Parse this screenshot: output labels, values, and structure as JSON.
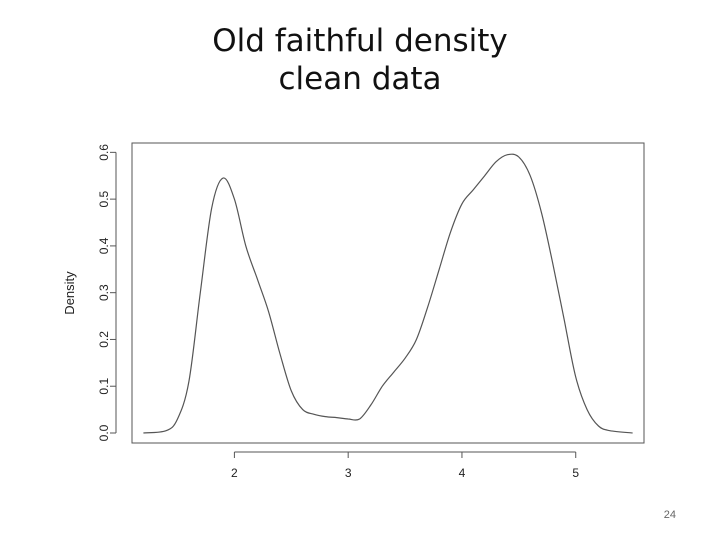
{
  "slide": {
    "title_line1": "Old faithful density",
    "title_line2": "clean data",
    "page_number": "24"
  },
  "chart_data": {
    "type": "line",
    "title": "Old faithful density clean data",
    "xlabel": "",
    "ylabel": "Density",
    "xlim": [
      1.1,
      5.6
    ],
    "ylim": [
      0,
      0.62
    ],
    "x_ticks": [
      2,
      3,
      4,
      5
    ],
    "y_ticks": [
      0.0,
      0.1,
      0.2,
      0.3,
      0.4,
      0.5,
      0.6
    ],
    "y_tick_labels": [
      "0.0",
      "0.1",
      "0.2",
      "0.3",
      "0.4",
      "0.5",
      "0.6"
    ],
    "grid": false,
    "legend": "none",
    "line_color": "#555555",
    "series": [
      {
        "x": [
          1.2,
          1.4,
          1.5,
          1.6,
          1.7,
          1.8,
          1.9,
          2.0,
          2.1,
          2.2,
          2.3,
          2.4,
          2.5,
          2.6,
          2.7,
          2.8,
          2.9,
          3.0,
          3.1,
          3.2,
          3.3,
          3.4,
          3.5,
          3.6,
          3.7,
          3.8,
          3.9,
          4.0,
          4.1,
          4.2,
          4.3,
          4.4,
          4.5,
          4.6,
          4.7,
          4.8,
          4.9,
          5.0,
          5.1,
          5.2,
          5.3,
          5.5
        ],
        "y": [
          0.0,
          0.005,
          0.03,
          0.11,
          0.3,
          0.48,
          0.545,
          0.5,
          0.4,
          0.33,
          0.26,
          0.17,
          0.09,
          0.05,
          0.04,
          0.035,
          0.033,
          0.03,
          0.03,
          0.06,
          0.1,
          0.13,
          0.16,
          0.2,
          0.27,
          0.35,
          0.43,
          0.49,
          0.52,
          0.55,
          0.58,
          0.595,
          0.59,
          0.55,
          0.47,
          0.36,
          0.24,
          0.12,
          0.05,
          0.015,
          0.005,
          0.0
        ]
      }
    ]
  }
}
